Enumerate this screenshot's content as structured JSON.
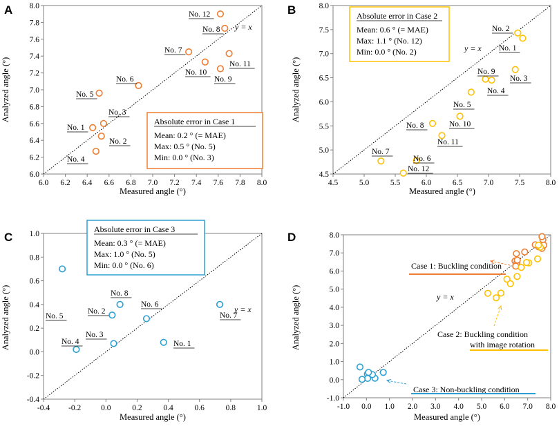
{
  "chart_data": [
    {
      "id": "A",
      "type": "scatter",
      "panel_letter": "A",
      "xlabel": "Measured angle (°)",
      "ylabel": "Analyzed angle (°)",
      "xlim": [
        6.0,
        8.0
      ],
      "ylim": [
        6.0,
        8.0
      ],
      "xticks": [
        6.0,
        6.2,
        6.4,
        6.6,
        6.8,
        7.0,
        7.2,
        7.4,
        7.6,
        7.8,
        8.0
      ],
      "yticks": [
        6.0,
        6.2,
        6.4,
        6.6,
        6.8,
        7.0,
        7.2,
        7.4,
        7.6,
        7.8,
        8.0
      ],
      "tick_decimals": 1,
      "color": "#ED7D31",
      "identity_label": "y = x",
      "points": [
        {
          "label": "No. 1",
          "x": 6.45,
          "y": 6.55
        },
        {
          "label": "No. 2",
          "x": 6.53,
          "y": 6.45
        },
        {
          "label": "No. 3",
          "x": 6.55,
          "y": 6.6
        },
        {
          "label": "No. 4",
          "x": 6.48,
          "y": 6.27
        },
        {
          "label": "No. 5",
          "x": 6.51,
          "y": 6.96
        },
        {
          "label": "No. 6",
          "x": 6.87,
          "y": 7.05
        },
        {
          "label": "No. 7",
          "x": 7.33,
          "y": 7.45
        },
        {
          "label": "No. 8",
          "x": 7.66,
          "y": 7.73
        },
        {
          "label": "No. 9",
          "x": 7.62,
          "y": 7.25
        },
        {
          "label": "No. 10",
          "x": 7.48,
          "y": 7.33
        },
        {
          "label": "No. 11",
          "x": 7.7,
          "y": 7.43
        },
        {
          "label": "No. 12",
          "x": 7.62,
          "y": 7.9
        }
      ],
      "box": {
        "title": "Absolute error in Case 1",
        "lines": [
          "Mean: 0.2 °   (= MAE)",
          "Max: 0.5 °   (No. 5)",
          "Min: 0.0 °   (No. 3)"
        ]
      }
    },
    {
      "id": "B",
      "type": "scatter",
      "panel_letter": "B",
      "xlabel": "Measured angle (°)",
      "ylabel": "Analyzed angle (°)",
      "xlim": [
        4.5,
        8.0
      ],
      "ylim": [
        4.5,
        8.0
      ],
      "xticks": [
        4.5,
        5.0,
        5.5,
        6.0,
        6.5,
        7.0,
        7.5,
        8.0
      ],
      "yticks": [
        4.5,
        5.0,
        5.5,
        6.0,
        6.5,
        7.0,
        7.5,
        8.0
      ],
      "tick_decimals": 1,
      "color": "#FFC000",
      "identity_label": "y = x",
      "points": [
        {
          "label": "No. 1",
          "x": 7.55,
          "y": 7.32
        },
        {
          "label": "No. 2",
          "x": 7.47,
          "y": 7.43
        },
        {
          "label": "No. 3",
          "x": 7.43,
          "y": 6.67
        },
        {
          "label": "No. 4",
          "x": 7.05,
          "y": 6.45
        },
        {
          "label": "No. 5",
          "x": 6.72,
          "y": 6.2
        },
        {
          "label": "No. 6",
          "x": 5.84,
          "y": 4.78
        },
        {
          "label": "No. 7",
          "x": 5.27,
          "y": 4.77
        },
        {
          "label": "No. 8",
          "x": 6.1,
          "y": 5.55
        },
        {
          "label": "No. 9",
          "x": 6.95,
          "y": 6.47
        },
        {
          "label": "No. 10",
          "x": 6.54,
          "y": 5.7
        },
        {
          "label": "No. 11",
          "x": 6.25,
          "y": 5.3
        },
        {
          "label": "No. 12",
          "x": 5.63,
          "y": 4.52
        }
      ],
      "box": {
        "title": "Absolute error in Case 2",
        "lines": [
          "Mean: 0.6 °   (= MAE)",
          "Max: 1.1 °   (No. 12)",
          "Min: 0.0 °   (No. 2)"
        ]
      }
    },
    {
      "id": "C",
      "type": "scatter",
      "panel_letter": "C",
      "xlabel": "Measured angle (°)",
      "ylabel": "Analyzed angle (°)",
      "xlim": [
        -0.4,
        1.0
      ],
      "ylim": [
        -0.4,
        1.0
      ],
      "xticks": [
        -0.4,
        -0.2,
        0.0,
        0.2,
        0.4,
        0.6,
        0.8,
        1.0
      ],
      "yticks": [
        -0.4,
        -0.2,
        0.0,
        0.2,
        0.4,
        0.6,
        0.8,
        1.0
      ],
      "tick_decimals": 1,
      "color": "#2E9FD2",
      "identity_label": "y = x",
      "points": [
        {
          "label": "No. 1",
          "x": 0.37,
          "y": 0.08
        },
        {
          "label": "No. 2",
          "x": 0.04,
          "y": 0.31
        },
        {
          "label": "No. 3",
          "x": 0.05,
          "y": 0.07
        },
        {
          "label": "No. 4",
          "x": -0.19,
          "y": 0.02
        },
        {
          "label": "No. 5",
          "x": -0.28,
          "y": 0.7
        },
        {
          "label": "No. 6",
          "x": 0.26,
          "y": 0.28
        },
        {
          "label": "No. 7",
          "x": 0.73,
          "y": 0.4
        },
        {
          "label": "No. 8",
          "x": 0.09,
          "y": 0.4
        }
      ],
      "box": {
        "title": "Absolute error in Case 3",
        "lines": [
          "Mean: 0.3 °   (= MAE)",
          "Max: 1.0 °   (No. 5)",
          "Min: 0.0 °   (No. 6)"
        ]
      }
    },
    {
      "id": "D",
      "type": "scatter",
      "panel_letter": "D",
      "xlabel": "Measured angle (°)",
      "ylabel": "Analyzed angle (°)",
      "xlim": [
        -1.0,
        8.0
      ],
      "ylim": [
        -1.0,
        8.0
      ],
      "xticks": [
        -1.0,
        0.0,
        1.0,
        2.0,
        3.0,
        4.0,
        5.0,
        6.0,
        7.0,
        8.0
      ],
      "yticks": [
        -1.0,
        0.0,
        1.0,
        2.0,
        3.0,
        4.0,
        5.0,
        6.0,
        7.0,
        8.0
      ],
      "tick_decimals": 1,
      "identity_label": "y = x",
      "series": [
        {
          "name": "Case 1: Buckling condition",
          "color": "#ED7D31",
          "points": [
            {
              "x": 6.45,
              "y": 6.55
            },
            {
              "x": 6.53,
              "y": 6.45
            },
            {
              "x": 6.55,
              "y": 6.6
            },
            {
              "x": 6.48,
              "y": 6.27
            },
            {
              "x": 6.51,
              "y": 6.96
            },
            {
              "x": 6.87,
              "y": 7.05
            },
            {
              "x": 7.33,
              "y": 7.45
            },
            {
              "x": 7.66,
              "y": 7.73
            },
            {
              "x": 7.62,
              "y": 7.25
            },
            {
              "x": 7.48,
              "y": 7.33
            },
            {
              "x": 7.7,
              "y": 7.43
            },
            {
              "x": 7.62,
              "y": 7.9
            }
          ]
        },
        {
          "name": "Case 2: Buckling condition with image rotation",
          "color": "#FFC000",
          "points": [
            {
              "x": 7.55,
              "y": 7.32
            },
            {
              "x": 7.47,
              "y": 7.43
            },
            {
              "x": 7.43,
              "y": 6.67
            },
            {
              "x": 7.05,
              "y": 6.45
            },
            {
              "x": 6.72,
              "y": 6.2
            },
            {
              "x": 5.84,
              "y": 4.78
            },
            {
              "x": 5.27,
              "y": 4.77
            },
            {
              "x": 6.1,
              "y": 5.55
            },
            {
              "x": 6.95,
              "y": 6.47
            },
            {
              "x": 6.54,
              "y": 5.7
            },
            {
              "x": 6.25,
              "y": 5.3
            },
            {
              "x": 5.63,
              "y": 4.52
            }
          ]
        },
        {
          "name": "Case 3: Non-buckling condition",
          "color": "#2E9FD2",
          "points": [
            {
              "x": 0.37,
              "y": 0.08
            },
            {
              "x": 0.04,
              "y": 0.31
            },
            {
              "x": 0.05,
              "y": 0.07
            },
            {
              "x": -0.19,
              "y": 0.02
            },
            {
              "x": -0.28,
              "y": 0.7
            },
            {
              "x": 0.26,
              "y": 0.28
            },
            {
              "x": 0.73,
              "y": 0.4
            },
            {
              "x": 0.09,
              "y": 0.4
            }
          ]
        }
      ],
      "annotations": [
        {
          "text": "Case 1: Buckling condition",
          "color": "#ED7D31"
        },
        {
          "text": "Case 2:  Buckling condition",
          "text2": "with image rotation",
          "color": "#FFC000"
        },
        {
          "text": "Case 3: Non-buckling condition",
          "color": "#2E9FD2"
        }
      ]
    }
  ]
}
